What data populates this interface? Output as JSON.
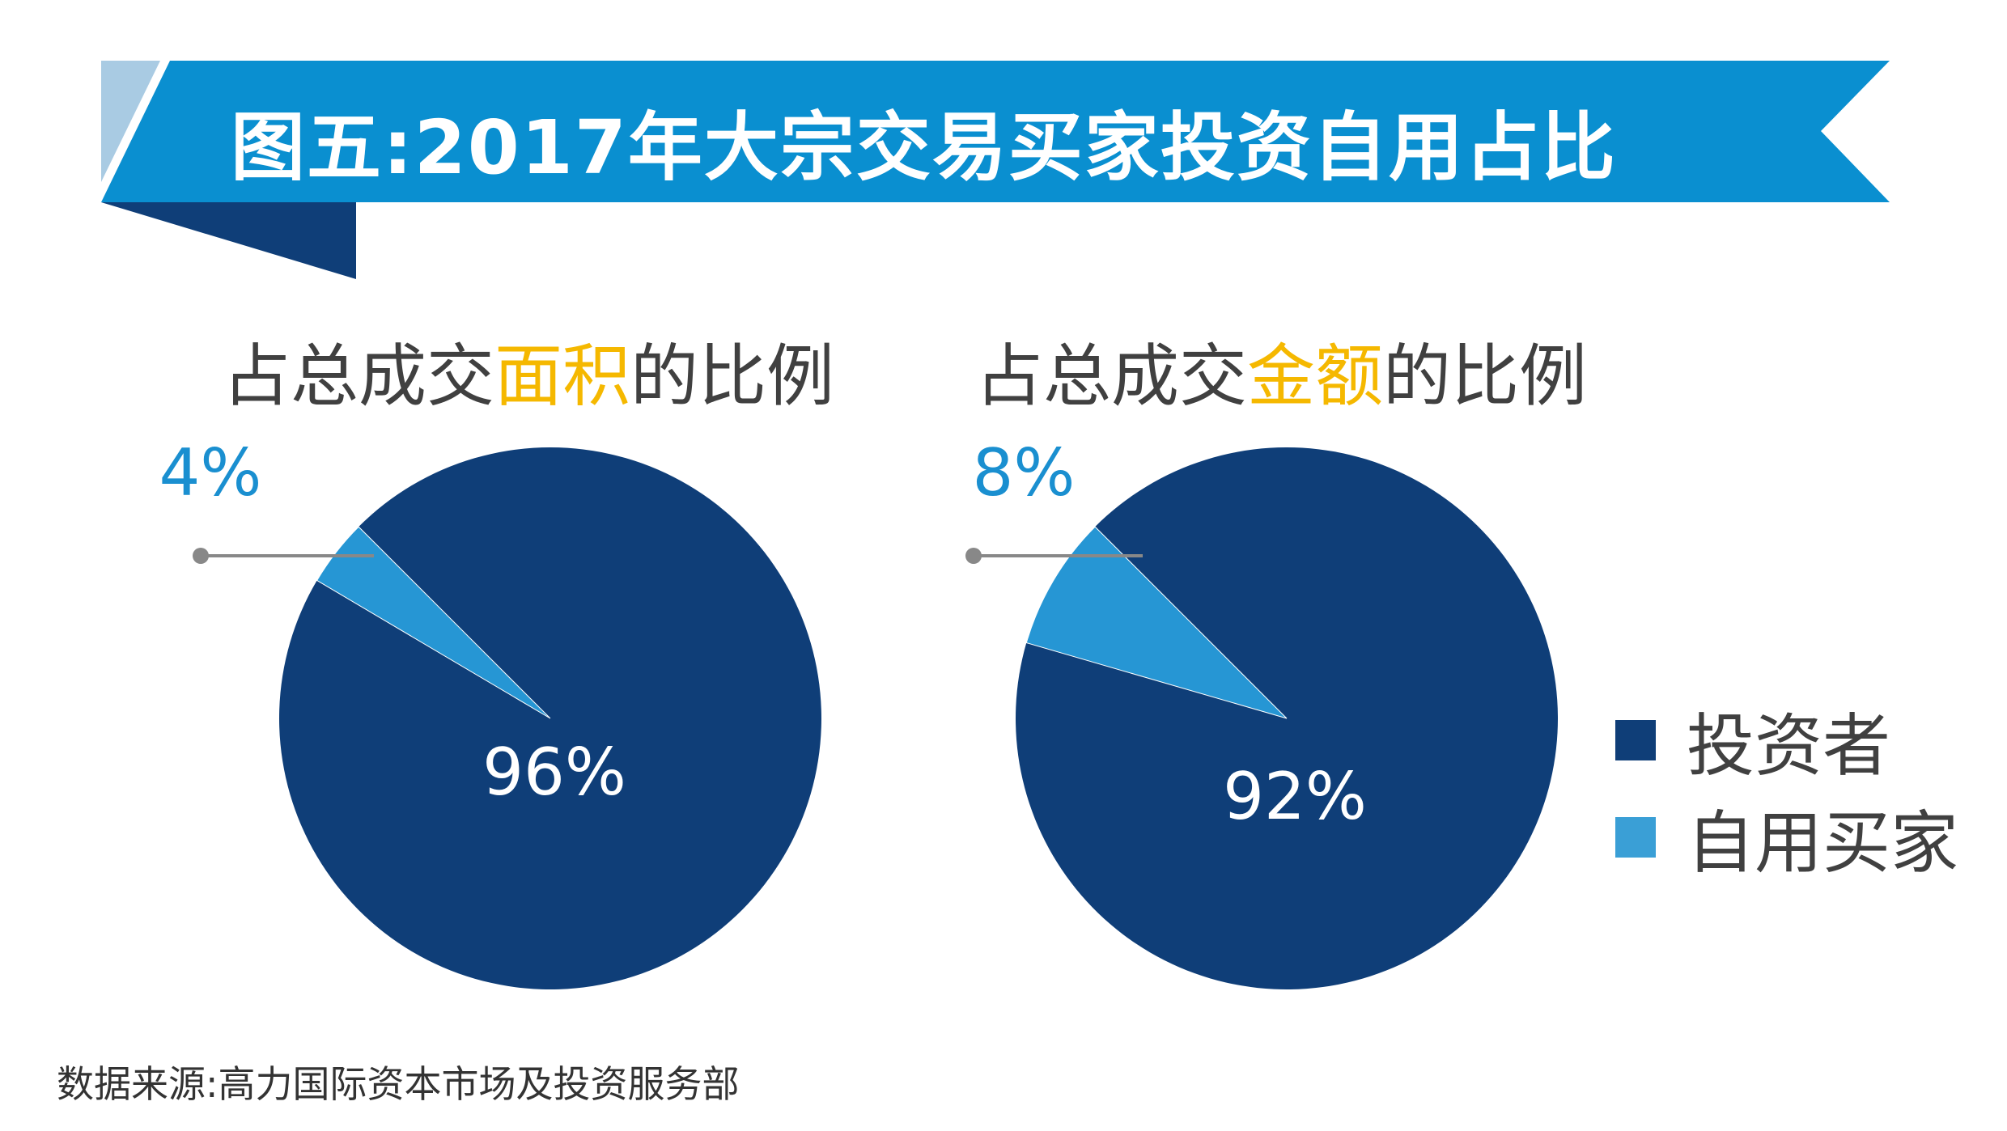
{
  "banner": {
    "title": "图五:2017年大宗交易买家投资自用占比"
  },
  "colors": {
    "banner_blue": "#0a8fd0",
    "banner_light": "#a9cbe3",
    "banner_dark": "#0f3e78",
    "investor": "#0f3e78",
    "owner_occupier": "#2696d4",
    "highlight": "#f5b800",
    "text": "#404040",
    "label_blue": "#1a8fd0",
    "leader_line": "#888888"
  },
  "charts": [
    {
      "title_prefix": "占总成交",
      "title_highlight": "面积",
      "title_suffix": "的比例"
    },
    {
      "title_prefix": "占总成交",
      "title_highlight": "金额",
      "title_suffix": "的比例"
    }
  ],
  "legend": [
    {
      "label": "投资者",
      "color": "#0f3e78"
    },
    {
      "label": "自用买家",
      "color": "#3a9fd6"
    }
  ],
  "source": "数据来源:高力国际资本市场及投资服务部",
  "chart_data": [
    {
      "type": "pie",
      "title": "占总成交面积的比例",
      "slices": [
        {
          "name": "投资者",
          "value": 96,
          "label": "96%"
        },
        {
          "name": "自用买家",
          "value": 4,
          "label": "4%"
        }
      ]
    },
    {
      "type": "pie",
      "title": "占总成交金额的比例",
      "slices": [
        {
          "name": "投资者",
          "value": 92,
          "label": "92%"
        },
        {
          "name": "自用买家",
          "value": 8,
          "label": "8%"
        }
      ]
    }
  ]
}
